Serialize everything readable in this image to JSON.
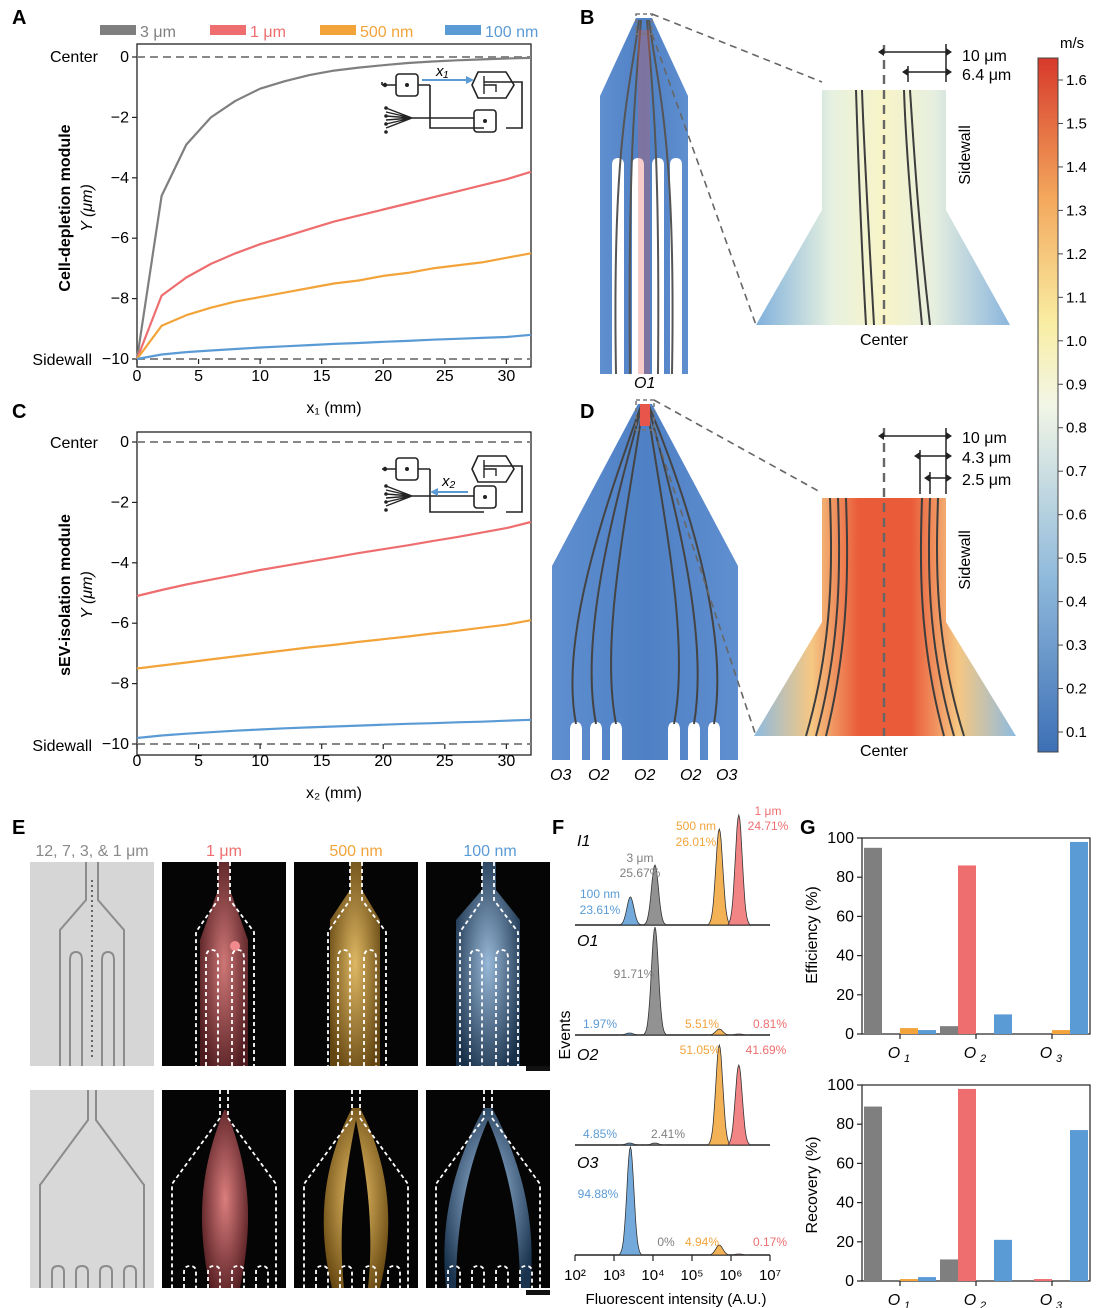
{
  "panels": {
    "A": "A",
    "B": "B",
    "C": "C",
    "D": "D",
    "E": "E",
    "F": "F",
    "G": "G"
  },
  "colors": {
    "gray": "#7f7f7f",
    "red": "#ee6e70",
    "orange": "#f2a43a",
    "blue": "#5b9bd5"
  },
  "legend": [
    "3 μm",
    "1 μm",
    "500 nm",
    "100 nm"
  ],
  "panelA": {
    "row_label": "Cell-depletion module",
    "ylabel": "Y (μm)",
    "xlabel": "x₁ (mm)",
    "center_label": "Center",
    "sidewall_label": "Sidewall",
    "inset_label": "x₁"
  },
  "panelC": {
    "row_label": "sEV-isolation module",
    "ylabel": "Y (μm)",
    "xlabel": "x₂ (mm)",
    "center_label": "Center",
    "sidewall_label": "Sidewall",
    "inset_label": "x₂"
  },
  "chart_data": [
    {
      "type": "line",
      "panel": "A",
      "xlabel": "x1 (mm)",
      "ylabel": "Y (μm)",
      "xlim": [
        0,
        32
      ],
      "ylim": [
        -10,
        0
      ],
      "xticks": [
        0,
        5,
        10,
        15,
        20,
        25,
        30
      ],
      "yticks": [
        0,
        -2,
        -4,
        -6,
        -8,
        -10
      ],
      "x": [
        0,
        2,
        4,
        6,
        8,
        10,
        12,
        14,
        16,
        18,
        20,
        22,
        24,
        26,
        28,
        30,
        32
      ],
      "series": [
        {
          "name": "3 μm",
          "values": [
            -10,
            -4.6,
            -2.9,
            -2.0,
            -1.45,
            -1.05,
            -0.8,
            -0.6,
            -0.45,
            -0.35,
            -0.27,
            -0.2,
            -0.15,
            -0.11,
            -0.08,
            -0.05,
            -0.03
          ]
        },
        {
          "name": "1 μm",
          "values": [
            -10,
            -7.9,
            -7.3,
            -6.85,
            -6.5,
            -6.2,
            -5.95,
            -5.7,
            -5.45,
            -5.25,
            -5.05,
            -4.85,
            -4.65,
            -4.45,
            -4.25,
            -4.05,
            -3.8
          ]
        },
        {
          "name": "500 nm",
          "values": [
            -10,
            -8.9,
            -8.55,
            -8.3,
            -8.1,
            -7.95,
            -7.8,
            -7.65,
            -7.5,
            -7.4,
            -7.25,
            -7.15,
            -7.0,
            -6.9,
            -6.8,
            -6.65,
            -6.5
          ]
        },
        {
          "name": "100 nm",
          "values": [
            -10,
            -9.85,
            -9.77,
            -9.72,
            -9.67,
            -9.62,
            -9.58,
            -9.54,
            -9.5,
            -9.47,
            -9.43,
            -9.4,
            -9.36,
            -9.33,
            -9.3,
            -9.27,
            -9.2
          ]
        }
      ]
    },
    {
      "type": "line",
      "panel": "C",
      "xlabel": "x2 (mm)",
      "ylabel": "Y (μm)",
      "xlim": [
        0,
        32
      ],
      "ylim": [
        -10,
        0
      ],
      "xticks": [
        0,
        5,
        10,
        15,
        20,
        25,
        30
      ],
      "yticks": [
        0,
        -2,
        -4,
        -6,
        -8,
        -10
      ],
      "x": [
        0,
        2,
        4,
        6,
        8,
        10,
        12,
        14,
        16,
        18,
        20,
        22,
        24,
        26,
        28,
        30,
        32
      ],
      "series": [
        {
          "name": "1 μm",
          "values": [
            -5.1,
            -4.9,
            -4.72,
            -4.56,
            -4.4,
            -4.24,
            -4.1,
            -3.96,
            -3.82,
            -3.68,
            -3.55,
            -3.42,
            -3.28,
            -3.15,
            -3.0,
            -2.85,
            -2.65
          ]
        },
        {
          "name": "500 nm",
          "values": [
            -7.5,
            -7.4,
            -7.3,
            -7.2,
            -7.1,
            -7.0,
            -6.9,
            -6.8,
            -6.72,
            -6.62,
            -6.53,
            -6.44,
            -6.34,
            -6.25,
            -6.15,
            -6.05,
            -5.9
          ]
        },
        {
          "name": "100 nm",
          "values": [
            -9.8,
            -9.72,
            -9.66,
            -9.61,
            -9.56,
            -9.52,
            -9.48,
            -9.45,
            -9.42,
            -9.39,
            -9.36,
            -9.33,
            -9.31,
            -9.28,
            -9.26,
            -9.23,
            -9.2
          ]
        }
      ]
    },
    {
      "type": "bar",
      "panel": "G-top",
      "ylabel": "Efficiency (%)",
      "ylim": [
        0,
        100
      ],
      "yticks": [
        0,
        20,
        40,
        60,
        80,
        100
      ],
      "categories": [
        "O1",
        "O2",
        "O3"
      ],
      "series": [
        {
          "name": "3 μm",
          "values": [
            95,
            4,
            0
          ]
        },
        {
          "name": "1 μm",
          "values": [
            0,
            86,
            0
          ]
        },
        {
          "name": "500 nm",
          "values": [
            3,
            0,
            2
          ]
        },
        {
          "name": "100 nm",
          "values": [
            2,
            10,
            98
          ]
        }
      ]
    },
    {
      "type": "bar",
      "panel": "G-bottom",
      "ylabel": "Recovery (%)",
      "ylim": [
        0,
        100
      ],
      "yticks": [
        0,
        20,
        40,
        60,
        80,
        100
      ],
      "categories": [
        "O1",
        "O2",
        "O3"
      ],
      "series": [
        {
          "name": "3 μm",
          "values": [
            89,
            11,
            0
          ]
        },
        {
          "name": "1 μm",
          "values": [
            0,
            98,
            1
          ]
        },
        {
          "name": "500 nm",
          "values": [
            1,
            0,
            0
          ]
        },
        {
          "name": "100 nm",
          "values": [
            2,
            21,
            77
          ]
        }
      ]
    }
  ],
  "panelB": {
    "dim1": "10 μm",
    "dim2": "6.4 μm",
    "sidewall_label": "Sidewall",
    "center_label": "Center",
    "outlet_label": "O1"
  },
  "panelD": {
    "dim1": "10 μm",
    "dim2": "4.3 μm",
    "dim3": "2.5 μm",
    "sidewall_label": "Sidewall",
    "center_label": "Center",
    "outlets": [
      "O3",
      "O2",
      "O2",
      "O2",
      "O3"
    ]
  },
  "colorbar": {
    "unit": "m/s",
    "ticks": [
      "1.6",
      "1.5",
      "1.4",
      "1.3",
      "1.2",
      "1.1",
      "1.0",
      "0.9",
      "0.8",
      "0.7",
      "0.6",
      "0.5",
      "0.4",
      "0.3",
      "0.2",
      "0.1"
    ]
  },
  "panelE": {
    "titles": [
      "12, 7, 3, & 1 μm",
      "1 μm",
      "500 nm",
      "100 nm"
    ]
  },
  "panelF": {
    "xlabel": "Fluorescent intensity (A.U.)",
    "ylabel": "Events",
    "xticks": [
      "10²",
      "10³",
      "10⁴",
      "10⁵",
      "10⁶",
      "10⁷"
    ],
    "rows": [
      {
        "label": "I1",
        "pct": {
          "c100": "23.61%",
          "c3": "25.67%",
          "c500": "26.01%",
          "c1": "24.71%"
        },
        "size3": "3 μm",
        "size100": "100 nm",
        "size500": "500 nm",
        "size1": "1 μm"
      },
      {
        "label": "O1",
        "pct": {
          "c100": "1.97%",
          "c3": "91.71%",
          "c500": "5.51%",
          "c1": "0.81%"
        }
      },
      {
        "label": "O2",
        "pct": {
          "c100": "4.85%",
          "c3": "2.41%",
          "c500": "51.05%",
          "c1": "41.69%"
        }
      },
      {
        "label": "O3",
        "pct": {
          "c100": "94.88%",
          "c3": "0%",
          "c500": "4.94%",
          "c1": "0.17%"
        }
      }
    ]
  },
  "panelG": {
    "eff_label": "Efficiency (%)",
    "rec_label": "Recovery (%)",
    "categories": [
      "O1",
      "O2",
      "O3"
    ]
  }
}
